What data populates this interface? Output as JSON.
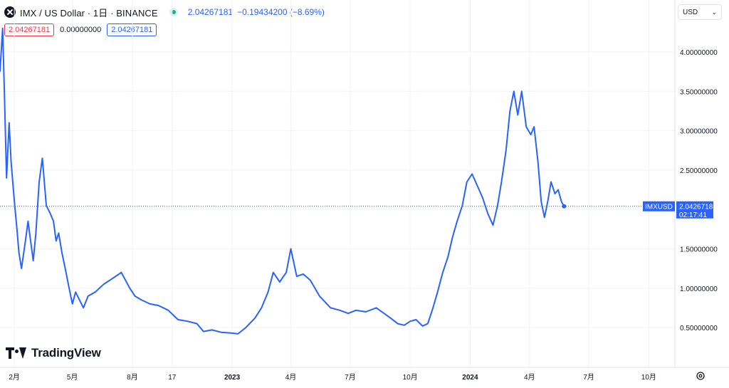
{
  "header": {
    "symbol_title": "IMX / US Dollar · 1日 · BINANCE",
    "last_price": "2.04267181",
    "change": "−0.19434200 (−8.69%)"
  },
  "quote_boxes": {
    "sell": "2.04267181",
    "spread": "0.00000000",
    "buy": "2.04267181"
  },
  "currency_select": {
    "value": "USD"
  },
  "price_label": {
    "symbol": "IMXUSD",
    "price": "2.04267181",
    "countdown": "02:17:41"
  },
  "brand": {
    "name": "TradingView"
  },
  "colors": {
    "line": "#2962ff",
    "grid": "#f0f3fa",
    "label_bg": "#2962ff",
    "sell": "#f23645"
  },
  "icons": {
    "logo": "imx-logo-icon",
    "market": "market-open-icon",
    "settings": "gear-icon",
    "currency_chevron": "chevron-down-icon"
  },
  "chart_data": {
    "type": "line",
    "title": "",
    "xlabel": "",
    "ylabel": "",
    "ylim": [
      0.2,
      4.3
    ],
    "y_ticks": [
      "4.00000000",
      "3.50000000",
      "3.00000000",
      "2.50000000",
      "1.50000000",
      "1.00000000",
      "0.50000000"
    ],
    "y_tick_values": [
      4.0,
      3.5,
      3.0,
      2.5,
      1.5,
      1.0,
      0.5
    ],
    "x_ticks": [
      "2月",
      "5月",
      "8月",
      "17",
      "2023",
      "4月",
      "7月",
      "10月",
      "2024",
      "4月",
      "7月",
      "10月"
    ],
    "x_tick_dates": [
      "2022-02-01",
      "2022-05-01",
      "2022-08-01",
      "2022-10-01",
      "2023-01-01",
      "2023-04-01",
      "2023-07-01",
      "2023-10-01",
      "2024-01-01",
      "2024-04-01",
      "2024-07-01",
      "2024-10-01"
    ],
    "x_bold": [
      false,
      false,
      false,
      false,
      true,
      false,
      false,
      false,
      true,
      false,
      false,
      false
    ],
    "xlim": [
      "2022-01-10",
      "2024-11-10"
    ],
    "series": [
      {
        "x": [
          "2022-01-10",
          "2022-01-14",
          "2022-01-17",
          "2022-01-20",
          "2022-01-24",
          "2022-01-27",
          "2022-02-01",
          "2022-02-05",
          "2022-02-08",
          "2022-02-12",
          "2022-02-18",
          "2022-02-22",
          "2022-02-26",
          "2022-03-02",
          "2022-03-06",
          "2022-03-11",
          "2022-03-16",
          "2022-03-22",
          "2022-03-28",
          "2022-04-02",
          "2022-04-06",
          "2022-04-10",
          "2022-04-15",
          "2022-04-20",
          "2022-04-26",
          "2022-05-01",
          "2022-05-06",
          "2022-05-12",
          "2022-05-18",
          "2022-05-25",
          "2022-06-05",
          "2022-06-18",
          "2022-07-01",
          "2022-07-15",
          "2022-07-28",
          "2022-08-05",
          "2022-08-15",
          "2022-08-28",
          "2022-09-10",
          "2022-09-25",
          "2022-10-10",
          "2022-10-25",
          "2022-11-08",
          "2022-11-18",
          "2022-12-01",
          "2022-12-15",
          "2022-12-30",
          "2023-01-10",
          "2023-01-22",
          "2023-02-05",
          "2023-02-15",
          "2023-02-25",
          "2023-03-05",
          "2023-03-15",
          "2023-03-25",
          "2023-04-01",
          "2023-04-10",
          "2023-04-20",
          "2023-05-01",
          "2023-05-15",
          "2023-06-01",
          "2023-06-15",
          "2023-06-28",
          "2023-07-10",
          "2023-07-25",
          "2023-08-10",
          "2023-08-22",
          "2023-09-01",
          "2023-09-12",
          "2023-09-22",
          "2023-10-01",
          "2023-10-10",
          "2023-10-20",
          "2023-10-28",
          "2023-11-05",
          "2023-11-12",
          "2023-11-20",
          "2023-11-28",
          "2023-12-05",
          "2023-12-12",
          "2023-12-20",
          "2023-12-27",
          "2024-01-04",
          "2024-01-12",
          "2024-01-20",
          "2024-01-28",
          "2024-02-05",
          "2024-02-12",
          "2024-02-18",
          "2024-02-25",
          "2024-03-02",
          "2024-03-08",
          "2024-03-14",
          "2024-03-20",
          "2024-03-27",
          "2024-04-03",
          "2024-04-08",
          "2024-04-14",
          "2024-04-19",
          "2024-04-24",
          "2024-04-29",
          "2024-05-04",
          "2024-05-10",
          "2024-05-15",
          "2024-05-20",
          "2024-05-24"
        ],
        "values": [
          3.75,
          4.3,
          3.4,
          2.4,
          3.1,
          2.6,
          2.1,
          1.75,
          1.45,
          1.25,
          1.6,
          1.85,
          1.6,
          1.35,
          1.7,
          2.35,
          2.65,
          2.05,
          1.95,
          1.85,
          1.6,
          1.7,
          1.45,
          1.25,
          1.0,
          0.8,
          0.95,
          0.85,
          0.75,
          0.9,
          0.95,
          1.05,
          1.12,
          1.2,
          1.0,
          0.9,
          0.85,
          0.8,
          0.78,
          0.72,
          0.6,
          0.58,
          0.55,
          0.45,
          0.47,
          0.44,
          0.43,
          0.42,
          0.5,
          0.62,
          0.75,
          0.95,
          1.2,
          1.08,
          1.2,
          1.5,
          1.15,
          1.18,
          1.1,
          0.9,
          0.75,
          0.72,
          0.68,
          0.72,
          0.7,
          0.75,
          0.68,
          0.62,
          0.55,
          0.53,
          0.58,
          0.6,
          0.52,
          0.55,
          0.75,
          0.95,
          1.2,
          1.4,
          1.65,
          1.85,
          2.05,
          2.35,
          2.45,
          2.3,
          2.15,
          1.95,
          1.8,
          2.05,
          2.35,
          2.75,
          3.25,
          3.5,
          3.2,
          3.5,
          3.05,
          2.95,
          3.05,
          2.6,
          2.1,
          1.9,
          2.1,
          2.35,
          2.2,
          2.25,
          2.1,
          2.04
        ]
      }
    ]
  }
}
